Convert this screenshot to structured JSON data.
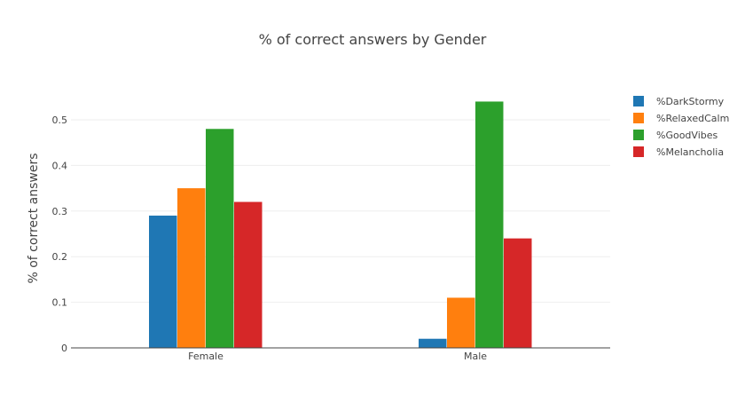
{
  "chart_data": {
    "type": "bar",
    "title": "% of correct answers by Gender",
    "xlabel": "",
    "ylabel": "% of correct answers",
    "categories": [
      "Female",
      "Male"
    ],
    "ylim": [
      0,
      0.55
    ],
    "yticks": [
      "0",
      "0.1",
      "0.2",
      "0.3",
      "0.4",
      "0.5"
    ],
    "grid": true,
    "legend_position": "top-right",
    "series": [
      {
        "name": "%DarkStormy",
        "color": "#1f77b4",
        "values": [
          0.29,
          0.02
        ]
      },
      {
        "name": "%RelaxedCalm",
        "color": "#ff7f0e",
        "values": [
          0.35,
          0.11
        ]
      },
      {
        "name": "%GoodVibes",
        "color": "#2ca02c",
        "values": [
          0.48,
          0.54
        ]
      },
      {
        "name": "%Melancholia",
        "color": "#d62728",
        "values": [
          0.32,
          0.24
        ]
      }
    ]
  }
}
